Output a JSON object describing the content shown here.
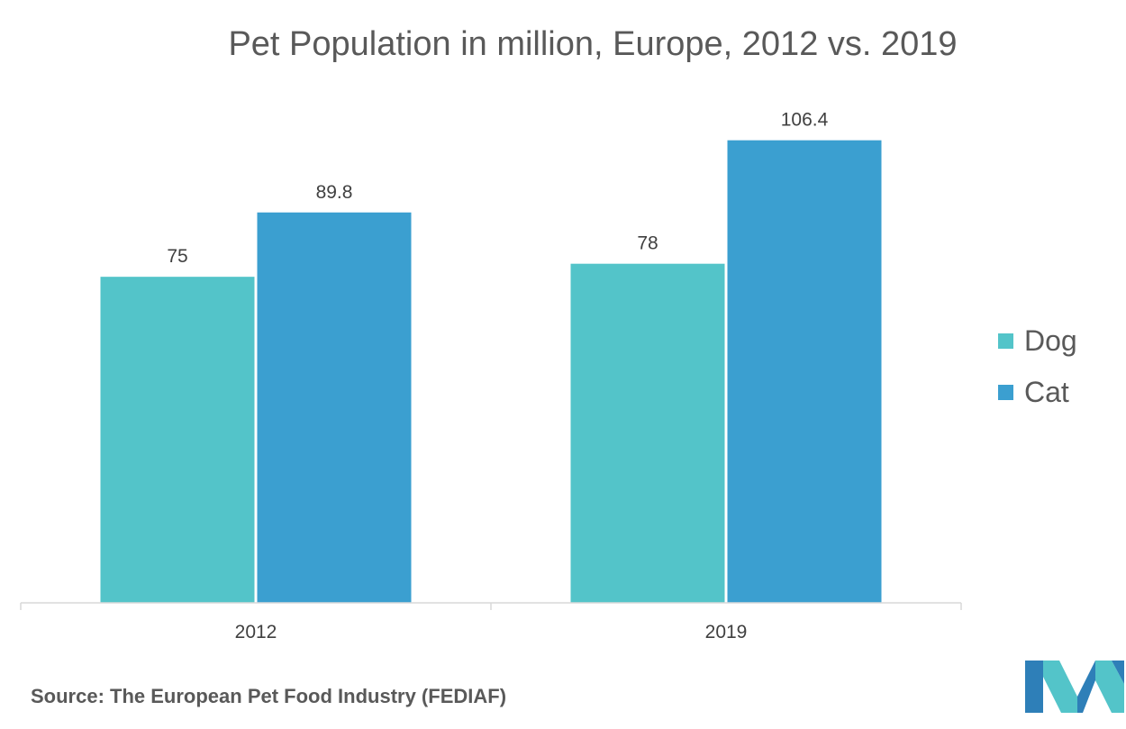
{
  "chart_data": {
    "type": "bar",
    "title": "Pet Population in million, Europe, 2012 vs. 2019",
    "categories": [
      "2012",
      "2019"
    ],
    "series": [
      {
        "name": "Dog",
        "values": [
          75,
          78
        ],
        "color": "#53C4C9"
      },
      {
        "name": "Cat",
        "values": [
          89.8,
          106.4
        ],
        "color": "#3B9FD0"
      }
    ],
    "data_labels": [
      [
        "75",
        "78"
      ],
      [
        "89.8",
        "106.4"
      ]
    ],
    "ylim": [
      0,
      114
    ],
    "grid": false,
    "legend_position": "right"
  },
  "source": "Source: The European Pet Food Industry (FEDIAF)",
  "logo": {
    "icon": "mordor-intelligence-logo",
    "colors": [
      "#2E7FB8",
      "#53C4C9"
    ]
  }
}
